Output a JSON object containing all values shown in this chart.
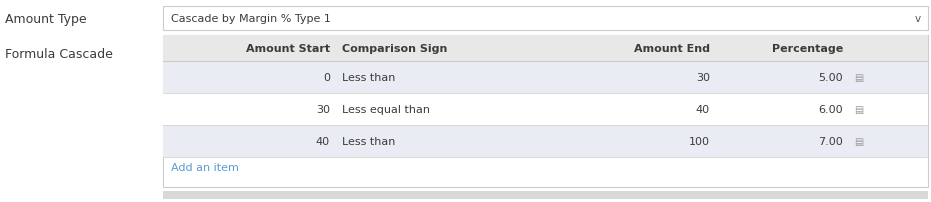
{
  "fig_width": 9.31,
  "fig_height": 2.03,
  "dpi": 100,
  "bg_color": "#ffffff",
  "label_color": "#3c3c3c",
  "left_labels": [
    "Amount Type",
    "Formula Cascade"
  ],
  "dropdown_text": "Cascade by Margin % Type 1",
  "dropdown_border": "#cccccc",
  "dropdown_bg": "#ffffff",
  "table_border": "#cccccc",
  "table_header_bg": "#e8e8e8",
  "table_row_bg_alt": "#eaecf4",
  "table_row_bg_white": "#ffffff",
  "header_labels": [
    "Amount Start",
    "Comparison Sign",
    "Amount End",
    "Percentage"
  ],
  "rows": [
    {
      "amount_start": "0",
      "comparison_sign": "Less than",
      "amount_end": "30",
      "percentage": "5.00"
    },
    {
      "amount_start": "30",
      "comparison_sign": "Less equal than",
      "amount_end": "40",
      "percentage": "6.00"
    },
    {
      "amount_start": "40",
      "comparison_sign": "Less than",
      "amount_end": "100",
      "percentage": "7.00"
    }
  ],
  "add_item_text": "Add an item",
  "add_item_color": "#5b9bd5",
  "font_size": 8.0,
  "label_font_size": 9.0,
  "header_font_size": 8.0,
  "separator_color": "#cccccc",
  "trash_color": "#999999",
  "bottom_bar_color": "#d8d8d8",
  "chevron_color": "#555555"
}
